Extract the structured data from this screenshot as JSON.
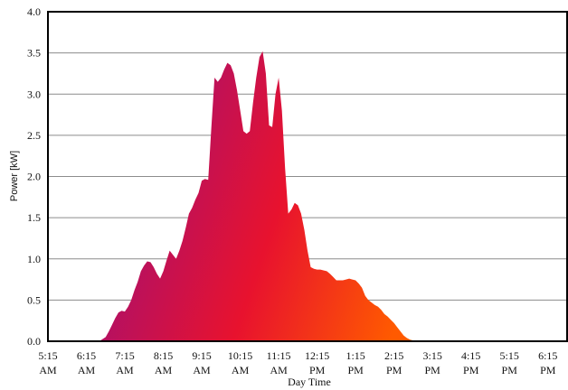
{
  "chart_data": {
    "type": "area",
    "xlabel": "Day Time",
    "ylabel": "Power [kW]",
    "ylim": [
      0,
      4
    ],
    "xlim": [
      "5:15 AM",
      "6:45 PM"
    ],
    "yticks": [
      "0.0",
      "0.5",
      "1.0",
      "1.5",
      "2.0",
      "2.5",
      "3.0",
      "3.5",
      "4.0"
    ],
    "xticks": [
      [
        "5:15",
        "AM"
      ],
      [
        "6:15",
        "AM"
      ],
      [
        "7:15",
        "AM"
      ],
      [
        "8:15",
        "AM"
      ],
      [
        "9:15",
        "AM"
      ],
      [
        "10:15",
        "AM"
      ],
      [
        "11:15",
        "AM"
      ],
      [
        "12:15",
        "PM"
      ],
      [
        "1:15",
        "PM"
      ],
      [
        "2:15",
        "PM"
      ],
      [
        "3:15",
        "PM"
      ],
      [
        "4:15",
        "PM"
      ],
      [
        "5:15",
        "PM"
      ],
      [
        "6:15",
        "PM"
      ]
    ],
    "grid": true,
    "colors": {
      "fill_start": "#a8106e",
      "fill_mid": "#e8122e",
      "fill_end": "#ff5a00",
      "grid": "#8c8c8c",
      "axis": "#000000"
    },
    "series": [
      {
        "x": [
          "6:35 AM",
          "6:45 AM",
          "6:50 AM",
          "6:55 AM",
          "7:00 AM",
          "7:05 AM",
          "7:10 AM",
          "7:15 AM",
          "7:20 AM",
          "7:25 AM",
          "7:30 AM",
          "7:35 AM",
          "7:40 AM",
          "7:45 AM",
          "7:50 AM",
          "7:55 AM",
          "8:00 AM",
          "8:05 AM",
          "8:10 AM",
          "8:15 AM",
          "8:20 AM",
          "8:25 AM",
          "8:30 AM",
          "8:35 AM",
          "8:40 AM",
          "8:45 AM",
          "8:50 AM",
          "8:55 AM",
          "9:00 AM",
          "9:05 AM",
          "9:10 AM",
          "9:15 AM",
          "9:20 AM",
          "9:25 AM",
          "9:30 AM",
          "9:35 AM",
          "9:40 AM",
          "9:45 AM",
          "9:50 AM",
          "9:55 AM",
          "10:00 AM",
          "10:05 AM",
          "10:10 AM",
          "10:15 AM",
          "10:20 AM",
          "10:25 AM",
          "10:30 AM",
          "10:35 AM",
          "10:40 AM",
          "10:45 AM",
          "10:50 AM",
          "10:55 AM",
          "11:00 AM",
          "11:05 AM",
          "11:10 AM",
          "11:15 AM",
          "11:20 AM",
          "11:25 AM",
          "11:30 AM",
          "11:35 AM",
          "11:40 AM",
          "11:45 AM",
          "11:50 AM",
          "11:55 AM",
          "12:00 PM",
          "12:05 PM",
          "12:10 PM",
          "12:15 PM",
          "12:20 PM",
          "12:25 PM",
          "12:30 PM",
          "12:35 PM",
          "12:40 PM",
          "12:45 PM",
          "12:50 PM",
          "12:55 PM",
          "1:00 PM",
          "1:05 PM",
          "1:10 PM",
          "1:15 PM",
          "1:20 PM",
          "1:25 PM",
          "1:30 PM",
          "1:35 PM",
          "1:40 PM",
          "1:45 PM",
          "1:50 PM",
          "1:55 PM",
          "2:00 PM",
          "2:05 PM",
          "2:10 PM",
          "2:15 PM",
          "2:20 PM",
          "2:25 PM",
          "2:30 PM",
          "2:35 PM",
          "2:40 PM",
          "2:45 PM",
          "2:50 PM",
          "2:55 PM",
          "3:00 PM",
          "3:05 PM",
          "3:10 PM",
          "3:15 PM",
          "3:20 PM",
          "3:25 PM",
          "3:30 PM",
          "3:35 PM",
          "3:40 PM",
          "3:45 PM",
          "3:50 PM",
          "3:55 PM",
          "4:00 PM",
          "4:05 PM",
          "4:10 PM",
          "4:15 PM",
          "4:20 PM",
          "4:25 PM",
          "4:30 PM",
          "4:35 PM",
          "4:40 PM",
          "4:45 PM",
          "4:50 PM",
          "4:55 PM",
          "5:00 PM"
        ],
        "values": [
          0.0,
          0.05,
          0.12,
          0.2,
          0.28,
          0.35,
          0.37,
          0.36,
          0.42,
          0.5,
          0.62,
          0.72,
          0.85,
          0.92,
          0.97,
          0.96,
          0.9,
          0.82,
          0.76,
          0.85,
          0.98,
          1.1,
          1.05,
          1.0,
          1.1,
          1.22,
          1.38,
          1.55,
          1.62,
          1.72,
          1.8,
          1.95,
          1.97,
          1.96,
          2.6,
          3.2,
          3.15,
          3.2,
          3.3,
          3.38,
          3.35,
          3.25,
          3.05,
          2.8,
          2.55,
          2.52,
          2.55,
          2.9,
          3.2,
          3.45,
          3.52,
          3.25,
          2.62,
          2.6,
          3.0,
          3.2,
          2.8,
          2.1,
          1.55,
          1.6,
          1.68,
          1.65,
          1.55,
          1.35,
          1.1,
          0.9,
          0.88,
          0.87,
          0.87,
          0.86,
          0.85,
          0.82,
          0.78,
          0.74,
          0.74,
          0.74,
          0.75,
          0.76,
          0.75,
          0.74,
          0.7,
          0.65,
          0.55,
          0.5,
          0.47,
          0.44,
          0.42,
          0.38,
          0.33,
          0.3,
          0.26,
          0.22,
          0.17,
          0.12,
          0.07,
          0.04,
          0.02,
          0.01,
          0.0,
          0.0,
          0.0,
          0.0,
          0.0,
          0.0,
          0.0,
          0.0,
          0.0,
          0.0,
          0.0,
          0.0,
          0.0,
          0.0,
          0.0,
          0.0,
          0.0,
          0.0,
          0.0,
          0.0,
          0.0,
          0.0,
          0.0,
          0.0,
          0.0,
          0.0,
          0.0
        ]
      }
    ]
  }
}
